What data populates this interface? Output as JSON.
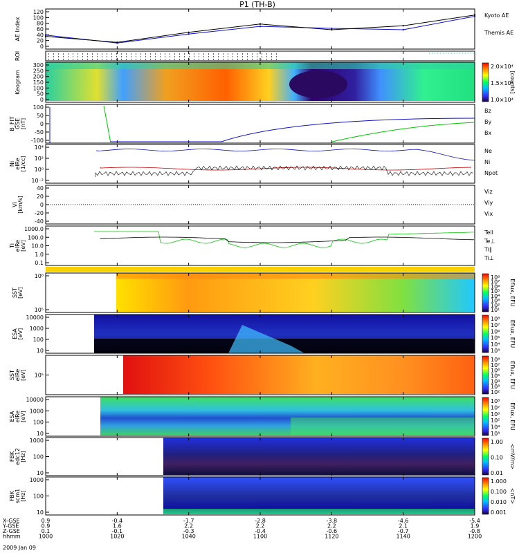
{
  "title": "P1 (TH-B)",
  "date_label": "2009 Jan 09",
  "colors": {
    "blue": "#1010c8",
    "red": "#c80000",
    "green": "#00c800",
    "black": "#000000",
    "yellow": "#ffff00",
    "orange": "#ff8000"
  },
  "panels": [
    {
      "id": "ae",
      "ylabel": [
        "AE Index"
      ],
      "yticks": [
        "120",
        "100",
        "80",
        "60",
        "40",
        "20",
        "0"
      ],
      "right": [
        {
          "text": "Kyoto AE",
          "color": "blue"
        },
        {
          "text": "Themis AE",
          "color": "black"
        }
      ]
    },
    {
      "id": "roi",
      "ylabel": [
        "ROI"
      ],
      "yticks": [],
      "right": []
    },
    {
      "id": "keogram",
      "ylabel": [
        "Keogram"
      ],
      "yticks": [
        "300",
        "250",
        "200",
        "150",
        "100",
        "50",
        "0"
      ],
      "right": [],
      "cbar": {
        "labels": [
          "2.0×10⁴",
          "1.5×10⁴",
          "1.0×10⁴"
        ],
        "title": "[counts]"
      }
    },
    {
      "id": "bfit",
      "ylabel": [
        "B_FIT",
        "GSE",
        "[nT]"
      ],
      "yticks": [
        "100",
        "50",
        "0",
        "-50",
        "-100"
      ],
      "right": [
        {
          "text": "Bz",
          "color": "red"
        },
        {
          "text": "By",
          "color": "green"
        },
        {
          "text": "Bx",
          "color": "blue"
        }
      ]
    },
    {
      "id": "ni",
      "ylabel": [
        "Ni",
        "eIRe",
        "[1/cc]"
      ],
      "yticks": [
        "10⁴",
        "10²",
        "10⁰",
        "10⁻²"
      ],
      "right": [
        {
          "text": "Ne",
          "color": "red"
        },
        {
          "text": "Ni",
          "color": "black"
        },
        {
          "text": "Npot",
          "color": "blue"
        }
      ]
    },
    {
      "id": "vi",
      "ylabel": [
        "Vi",
        "[km/s]"
      ],
      "yticks": [
        "40",
        "20",
        "0",
        "-20",
        "-40"
      ],
      "right": [
        {
          "text": "Viz",
          "color": "red"
        },
        {
          "text": "Viy",
          "color": "green"
        },
        {
          "text": "Vix",
          "color": "blue"
        }
      ]
    },
    {
      "id": "ti",
      "ylabel": [
        "Ti",
        "eIRe",
        "[eV]"
      ],
      "yticks": [
        "1000.0",
        "100.0",
        "10.0",
        "1.0",
        "0.1"
      ],
      "right": [
        {
          "text": "Tell",
          "color": "black"
        },
        {
          "text": "Te⊥",
          "color": "red"
        },
        {
          "text": "Ti∥",
          "color": "green"
        },
        {
          "text": "Ti⊥",
          "color": "blue"
        }
      ]
    },
    {
      "id": "sst1",
      "ylabel": [
        "SST",
        "[eV]"
      ],
      "yticks": [
        "10⁶",
        "10⁵"
      ],
      "right": [],
      "cbar": {
        "labels": [
          "10⁸",
          "10⁷",
          "10⁶",
          "10⁵",
          "10⁴",
          "10³",
          "10²",
          "10¹"
        ],
        "title": "Eflux, EFU"
      }
    },
    {
      "id": "esa1",
      "ylabel": [
        "ESA",
        "[eV]"
      ],
      "yticks": [
        "10000",
        "1000",
        "100",
        "10"
      ],
      "right": [],
      "cbar": {
        "labels": [
          "10⁸",
          "10⁷",
          "10⁶",
          "10⁵",
          "10⁴",
          "10³"
        ],
        "title": "Eflux, EFU"
      }
    },
    {
      "id": "sst2",
      "ylabel": [
        "SST",
        "eIRe",
        "[eV]"
      ],
      "yticks": [
        "10⁵"
      ],
      "right": [],
      "cbar": {
        "labels": [
          "10⁸",
          "10⁷",
          "10⁶",
          "10⁵",
          "10⁴",
          "10³",
          "10²"
        ],
        "title": "Eflux, EFU"
      }
    },
    {
      "id": "esa2",
      "ylabel": [
        "ESA",
        "eIRe",
        "[eV]"
      ],
      "yticks": [
        "10000",
        "1000",
        "100",
        "10"
      ],
      "right": [],
      "cbar": {
        "labels": [
          "10⁸",
          "10⁷",
          "10⁶",
          "10⁵",
          "10⁴",
          "10³"
        ],
        "title": "Eflux, EFU"
      }
    },
    {
      "id": "fbk1",
      "ylabel": [
        "FBK",
        "edc12",
        "[Hz]"
      ],
      "yticks": [
        "1000",
        "100",
        "10"
      ],
      "right": [],
      "cbar": {
        "labels": [
          "1.00",
          "0.10",
          "0.01"
        ],
        "title": "<mV/m>"
      }
    },
    {
      "id": "fbk2",
      "ylabel": [
        "FBK",
        "scm1",
        "[Hz]"
      ],
      "yticks": [
        "1000",
        "100",
        "10"
      ],
      "right": [],
      "cbar": {
        "labels": [
          "1.000",
          "0.100",
          "0.010",
          "0.001"
        ],
        "title": "<nT>"
      }
    }
  ],
  "ephemeris": {
    "row_labels": [
      "X-GSE",
      "Y-GSE",
      "Z-GSE",
      "hhmm"
    ],
    "columns": [
      [
        "0.9",
        "0.9",
        "0.1",
        "1000"
      ],
      [
        "-0.4",
        "1.6",
        "-0.1",
        "1020"
      ],
      [
        "-1.7",
        "2.2",
        "-0.3",
        "1040"
      ],
      [
        "-2.8",
        "2.2",
        "-0.4",
        "1100"
      ],
      [
        "-3.8",
        "2.2",
        "-0.6",
        "1120"
      ],
      [
        "-4.6",
        "2.1",
        "-0.7",
        "1140"
      ],
      [
        "-5.4",
        "1.9",
        "-0.8",
        "1200"
      ]
    ]
  },
  "chart_data": {
    "type": "line",
    "title": "P1 (TH-B)",
    "x": [
      "1000",
      "1020",
      "1040",
      "1100",
      "1120",
      "1140",
      "1200"
    ],
    "xlabel": "hhmm",
    "series": [
      {
        "name": "Kyoto AE",
        "values": [
          42,
          18,
          45,
          68,
          62,
          58,
          98
        ]
      },
      {
        "name": "Themis AE",
        "values": [
          38,
          20,
          50,
          75,
          58,
          70,
          102
        ]
      }
    ],
    "ylim": [
      0,
      120
    ],
    "ylabel": "AE Index"
  }
}
